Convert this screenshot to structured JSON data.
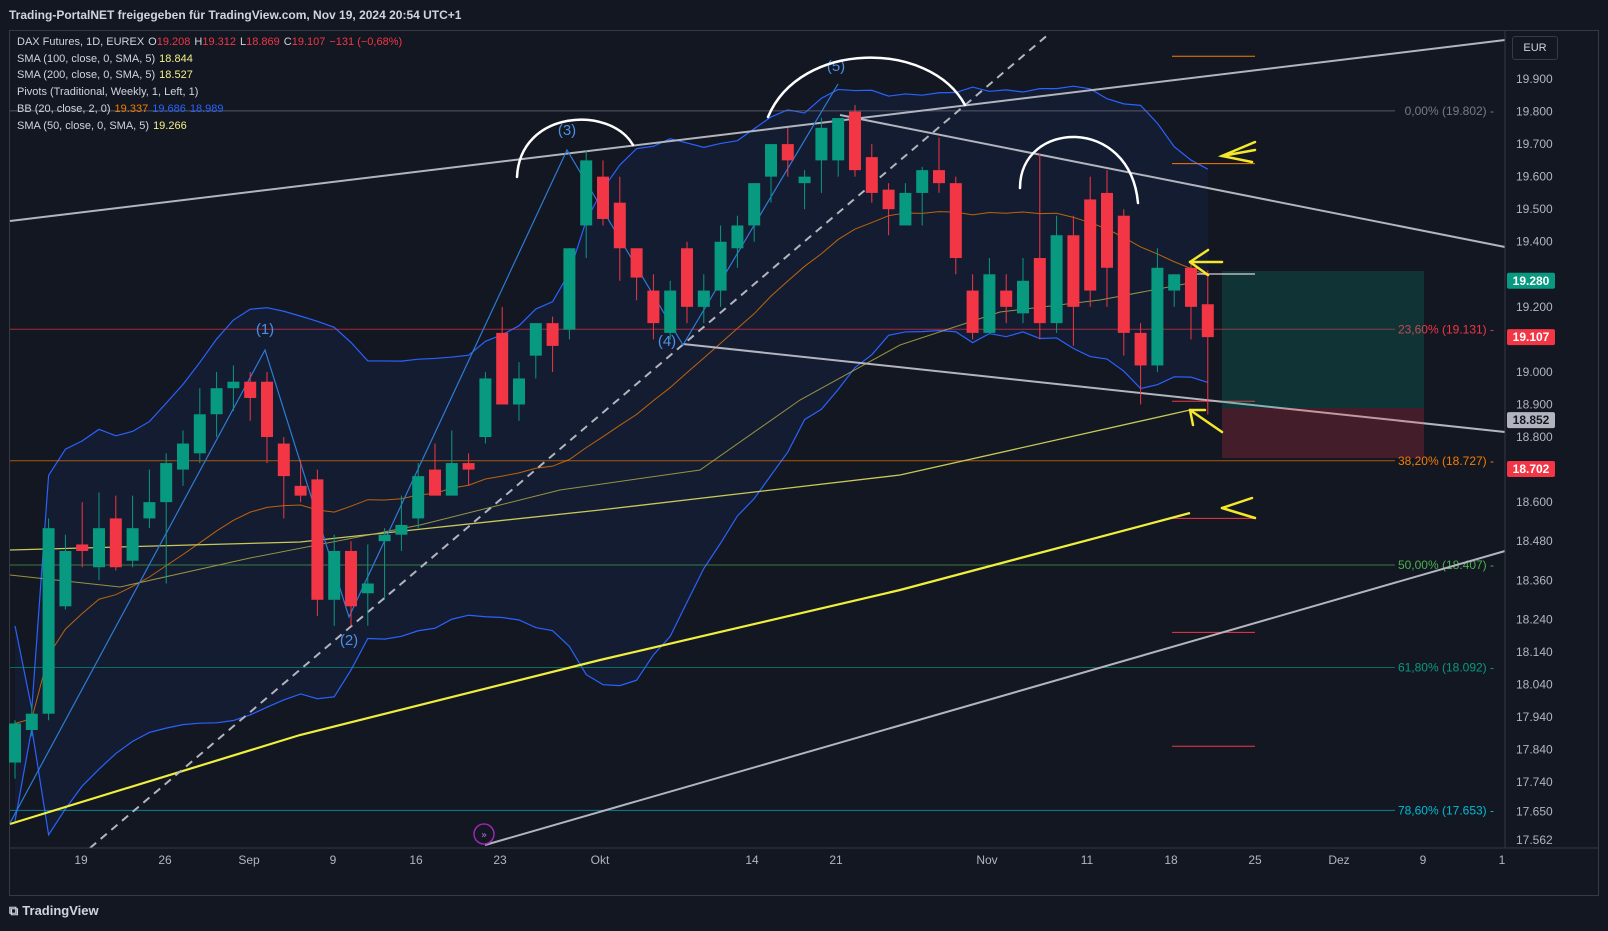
{
  "header": {
    "watermark": "Trading-PortalNET freigegeben für TradingView.com, Nov 19, 2024 20:54 UTC+1"
  },
  "currency": "EUR",
  "footer": {
    "brand": "TradingView"
  },
  "legend": [
    {
      "text": "DAX Futures, 1D, EUREX",
      "values": [
        {
          "label": "O",
          "value": "19.208",
          "color": "#f23645"
        },
        {
          "label": "H",
          "value": "19.312",
          "color": "#f23645"
        },
        {
          "label": "L",
          "value": "18.869",
          "color": "#f23645"
        },
        {
          "label": "C",
          "value": "19.107",
          "color": "#f23645"
        },
        {
          "label": "",
          "value": "−131 (−0,68%)",
          "color": "#f23645"
        }
      ]
    },
    {
      "text": "SMA (100, close, 0, SMA, 5)",
      "values": [
        {
          "label": "",
          "value": "18.844",
          "color": "#f5f085"
        }
      ]
    },
    {
      "text": "SMA (200, close, 0, SMA, 5)",
      "values": [
        {
          "label": "",
          "value": "18.527",
          "color": "#f5f085"
        }
      ]
    },
    {
      "text": "Pivots (Traditional, Weekly, 1, Left, 1)",
      "values": []
    },
    {
      "text": "BB (20, close, 2, 0)",
      "values": [
        {
          "label": "",
          "value": "19.337",
          "color": "#f57c00"
        },
        {
          "label": "",
          "value": "19.686",
          "color": "#2962ff"
        },
        {
          "label": "",
          "value": "18.989",
          "color": "#2962ff"
        }
      ]
    },
    {
      "text": "SMA (50, close, 0, SMA, 5)",
      "values": [
        {
          "label": "",
          "value": "19.266",
          "color": "#f5f085"
        }
      ]
    }
  ],
  "price_scale": {
    "min": 17.562,
    "max": 20.0,
    "ticks": [
      "19.900",
      "19.800",
      "19.700",
      "19.600",
      "19.500",
      "19.400",
      "19.200",
      "19.000",
      "18.900",
      "18.800",
      "18.600",
      "18.480",
      "18.360",
      "18.240",
      "18.140",
      "18.040",
      "17.940",
      "17.840",
      "17.740",
      "17.650",
      "17.562"
    ]
  },
  "price_labels": [
    {
      "value": "19.280",
      "bg": "#089981",
      "fg": "#ffffff"
    },
    {
      "value": "19.107",
      "bg": "#f23645",
      "fg": "#ffffff"
    },
    {
      "value": "18.852",
      "bg": "#b2b5be",
      "fg": "#131722"
    },
    {
      "value": "18.702",
      "bg": "#f23645",
      "fg": "#ffffff"
    }
  ],
  "time_axis": [
    "19",
    "26",
    "Sep",
    "9",
    "16",
    "23",
    "Okt",
    "14",
    "21",
    "Nov",
    "11",
    "18",
    "25",
    "Dez",
    "9",
    "1"
  ],
  "fib_levels": [
    {
      "label": "0,00% (19.802)",
      "price": 19.802,
      "color": "#787b86"
    },
    {
      "label": "23,60% (19.131)",
      "price": 19.131,
      "color": "#f23645"
    },
    {
      "label": "38,20% (18.727)",
      "price": 18.727,
      "color": "#f57c00"
    },
    {
      "label": "50,00% (18.407)",
      "price": 18.407,
      "color": "#4caf50"
    },
    {
      "label": "61,80% (18.092)",
      "price": 18.092,
      "color": "#089981"
    },
    {
      "label": "78,60% (17.653)",
      "price": 17.653,
      "color": "#00bcd4"
    }
  ],
  "wave_labels": [
    "(1)",
    "(2)",
    "(3)",
    "(4)",
    "(5)"
  ],
  "chart_data": {
    "type": "candlestick",
    "symbol": "DAX Futures",
    "interval": "1D",
    "exchange": "EUREX",
    "ylim": [
      17.562,
      20.0
    ],
    "last": {
      "open": 19.208,
      "high": 19.312,
      "low": 18.869,
      "close": 19.107,
      "change": "−131 (−0,68%)"
    },
    "indicators": {
      "SMA100": 18.844,
      "SMA200": 18.527,
      "SMA50": 19.266,
      "BB_basis": 19.337,
      "BB_upper": 19.686,
      "BB_lower": 18.989
    },
    "candles": [
      [
        17.8,
        17.93,
        17.75,
        17.92
      ],
      [
        17.9,
        17.98,
        17.88,
        17.95
      ],
      [
        17.95,
        18.55,
        17.93,
        18.52
      ],
      [
        18.28,
        18.5,
        18.27,
        18.45
      ],
      [
        18.47,
        18.6,
        18.4,
        18.45
      ],
      [
        18.4,
        18.63,
        18.36,
        18.52
      ],
      [
        18.55,
        18.62,
        18.39,
        18.4
      ],
      [
        18.42,
        18.62,
        18.4,
        18.52
      ],
      [
        18.55,
        18.7,
        18.52,
        18.6
      ],
      [
        18.6,
        18.75,
        18.35,
        18.72
      ],
      [
        18.7,
        18.82,
        18.65,
        18.78
      ],
      [
        18.75,
        18.95,
        18.72,
        18.87
      ],
      [
        18.87,
        19.0,
        18.8,
        18.95
      ],
      [
        18.95,
        19.02,
        18.88,
        18.97
      ],
      [
        18.97,
        19.0,
        18.85,
        18.92
      ],
      [
        18.97,
        19.0,
        18.72,
        18.8
      ],
      [
        18.78,
        18.8,
        18.55,
        18.68
      ],
      [
        18.65,
        18.73,
        18.6,
        18.62
      ],
      [
        18.67,
        18.7,
        18.25,
        18.3
      ],
      [
        18.3,
        18.5,
        18.22,
        18.45
      ],
      [
        18.45,
        18.48,
        18.22,
        18.28
      ],
      [
        18.32,
        18.47,
        18.22,
        18.35
      ],
      [
        18.48,
        18.52,
        18.3,
        18.5
      ],
      [
        18.5,
        18.62,
        18.45,
        18.53
      ],
      [
        18.55,
        18.72,
        18.52,
        18.68
      ],
      [
        18.7,
        18.78,
        18.62,
        18.62
      ],
      [
        18.62,
        18.82,
        18.62,
        18.72
      ],
      [
        18.72,
        18.75,
        18.65,
        18.7
      ],
      [
        18.8,
        19.0,
        18.78,
        18.98
      ],
      [
        19.12,
        19.2,
        18.9,
        18.9
      ],
      [
        18.9,
        19.03,
        18.85,
        18.98
      ],
      [
        19.05,
        19.15,
        18.98,
        19.15
      ],
      [
        19.15,
        19.17,
        19.0,
        19.08
      ],
      [
        19.13,
        19.38,
        19.1,
        19.38
      ],
      [
        19.45,
        19.68,
        19.35,
        19.65
      ],
      [
        19.6,
        19.65,
        19.45,
        19.47
      ],
      [
        19.52,
        19.6,
        19.28,
        19.38
      ],
      [
        19.38,
        19.38,
        19.22,
        19.29
      ],
      [
        19.25,
        19.3,
        19.1,
        19.15
      ],
      [
        19.12,
        19.28,
        19.1,
        19.25
      ],
      [
        19.38,
        19.4,
        19.15,
        19.2
      ],
      [
        19.2,
        19.3,
        19.15,
        19.25
      ],
      [
        19.25,
        19.45,
        19.2,
        19.4
      ],
      [
        19.38,
        19.48,
        19.32,
        19.45
      ],
      [
        19.45,
        19.58,
        19.4,
        19.58
      ],
      [
        19.6,
        19.7,
        19.52,
        19.7
      ],
      [
        19.7,
        19.75,
        19.6,
        19.65
      ],
      [
        19.58,
        19.62,
        19.5,
        19.6
      ],
      [
        19.65,
        19.78,
        19.55,
        19.75
      ],
      [
        19.65,
        19.78,
        19.6,
        19.78
      ],
      [
        19.8,
        19.82,
        19.6,
        19.62
      ],
      [
        19.66,
        19.7,
        19.52,
        19.55
      ],
      [
        19.56,
        19.58,
        19.42,
        19.5
      ],
      [
        19.45,
        19.58,
        19.45,
        19.55
      ],
      [
        19.55,
        19.63,
        19.45,
        19.62
      ],
      [
        19.62,
        19.72,
        19.55,
        19.58
      ],
      [
        19.58,
        19.6,
        19.3,
        19.35
      ],
      [
        19.25,
        19.3,
        19.1,
        19.12
      ],
      [
        19.12,
        19.35,
        19.12,
        19.3
      ],
      [
        19.25,
        19.3,
        19.15,
        19.2
      ],
      [
        19.18,
        19.35,
        19.15,
        19.28
      ],
      [
        19.35,
        19.67,
        19.1,
        19.15
      ],
      [
        19.15,
        19.48,
        19.12,
        19.42
      ],
      [
        19.42,
        19.48,
        19.08,
        19.2
      ],
      [
        19.53,
        19.6,
        19.2,
        19.25
      ],
      [
        19.55,
        19.62,
        19.2,
        19.32
      ],
      [
        19.48,
        19.5,
        19.05,
        19.12
      ],
      [
        19.12,
        19.15,
        18.9,
        19.02
      ],
      [
        19.02,
        19.38,
        19.0,
        19.32
      ],
      [
        19.25,
        19.3,
        19.2,
        19.3
      ],
      [
        19.32,
        19.34,
        19.1,
        19.2
      ],
      [
        19.208,
        19.312,
        18.869,
        19.107
      ]
    ]
  }
}
